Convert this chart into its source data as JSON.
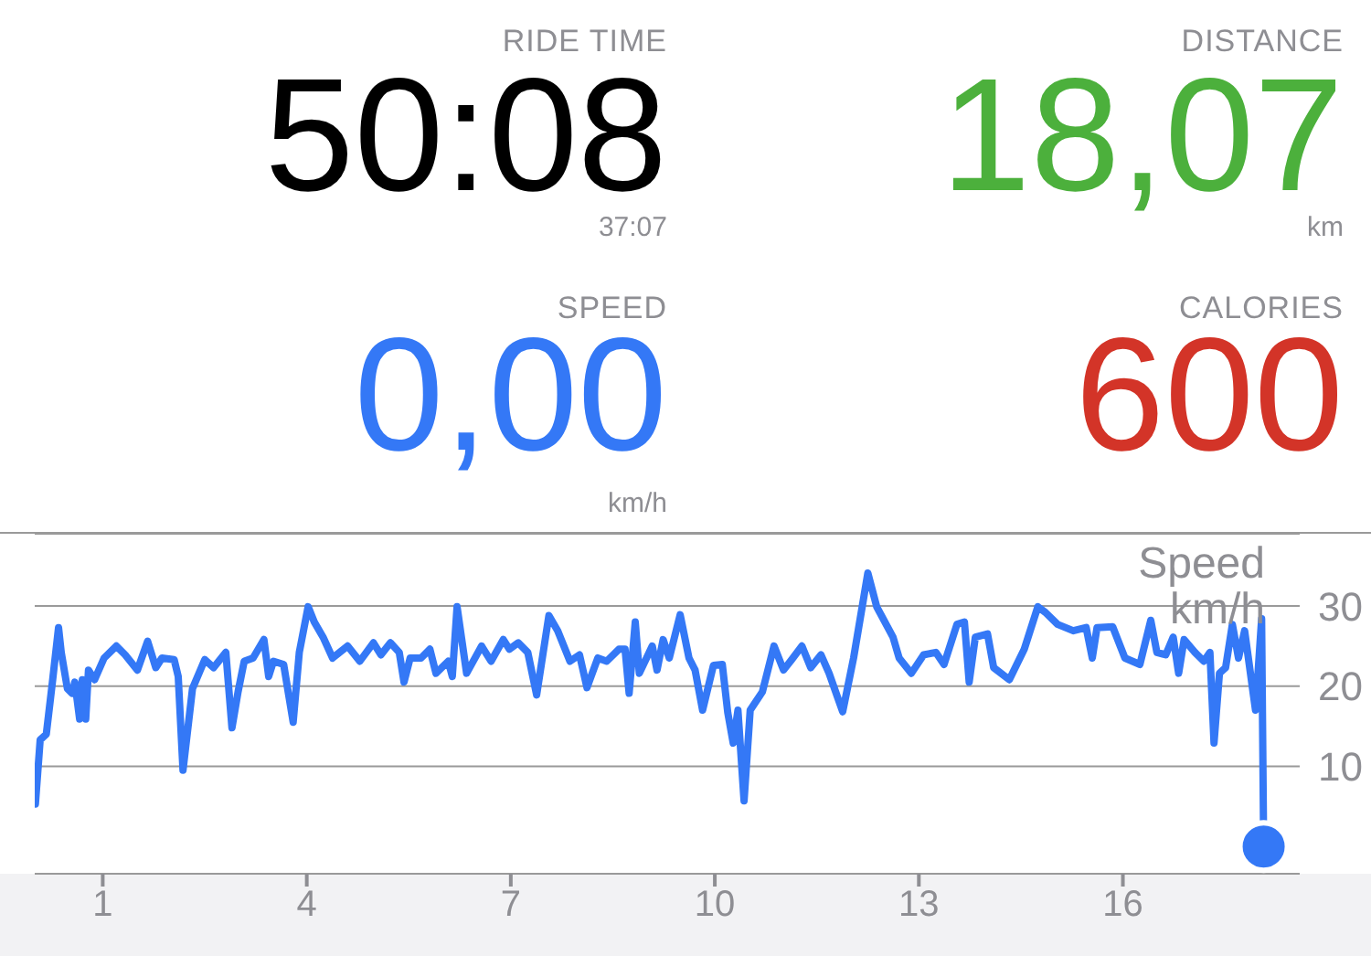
{
  "chart_data": [
    {
      "type": "other",
      "title": "RIDE TIME",
      "annotations": [
        "50:08",
        "37:07"
      ],
      "color": "#000000"
    },
    {
      "type": "other",
      "title": "DISTANCE",
      "annotations": [
        "18,07",
        "km"
      ],
      "color": "#4cb03c"
    },
    {
      "type": "other",
      "title": "SPEED",
      "annotations": [
        "0,00",
        "km/h"
      ],
      "color": "#3478f6"
    },
    {
      "type": "other",
      "title": "CALORIES",
      "annotations": [
        "600"
      ],
      "color": "#d33428"
    },
    {
      "type": "line",
      "ylabel": "Speed km/h",
      "xlim": [
        0,
        18.6
      ],
      "xticks": [
        1,
        4,
        7,
        10,
        13,
        16
      ],
      "ylim": [
        -3.4,
        39
      ],
      "yticks": [
        10,
        20,
        30
      ],
      "grid": "y",
      "line_style": "solid",
      "marker": "none",
      "series": [
        {
          "color": "#3478f6",
          "x": [
            0,
            0.01,
            0.08,
            0.17,
            0.26,
            0.35,
            0.39,
            0.48,
            0.55,
            0.59,
            0.66,
            0.7,
            0.75,
            0.79,
            0.88,
            1.02,
            1.2,
            1.33,
            1.51,
            1.66,
            1.78,
            1.87,
            2.05,
            2.11,
            2.18,
            2.32,
            2.5,
            2.63,
            2.81,
            2.9,
            2.99,
            3.08,
            3.21,
            3.37,
            3.44,
            3.51,
            3.66,
            3.8,
            3.89,
            4.02,
            4.11,
            4.24,
            4.38,
            4.6,
            4.78,
            4.98,
            5.09,
            5.23,
            5.36,
            5.43,
            5.52,
            5.68,
            5.81,
            5.9,
            6.08,
            6.14,
            6.21,
            6.35,
            6.57,
            6.71,
            6.89,
            6.98,
            7.11,
            7.25,
            7.38,
            7.56,
            7.69,
            7.87,
            8.01,
            8.12,
            8.28,
            8.41,
            8.59,
            8.68,
            8.74,
            8.83,
            8.89,
            9.08,
            9.15,
            9.24,
            9.33,
            9.49,
            9.62,
            9.71,
            9.82,
            9.98,
            10.11,
            10.19,
            10.27,
            10.34,
            10.43,
            10.52,
            10.7,
            10.87,
            11.01,
            11.13,
            11.28,
            11.41,
            11.56,
            11.68,
            11.88,
            12.04,
            12.25,
            12.38,
            12.62,
            12.71,
            12.89,
            13.07,
            13.25,
            13.37,
            13.56,
            13.67,
            13.74,
            13.83,
            14.01,
            14.1,
            14.33,
            14.55,
            14.75,
            14.86,
            15.04,
            15.27,
            15.46,
            15.55,
            15.62,
            15.85,
            16.03,
            16.25,
            16.41,
            16.5,
            16.63,
            16.74,
            16.82,
            16.9,
            17.06,
            17.19,
            17.28,
            17.34,
            17.42,
            17.51,
            17.61,
            17.7,
            17.79,
            17.95,
            18.04,
            18.07
          ],
          "values": [
            7.2,
            5.3,
            13.3,
            14,
            20.5,
            27.3,
            24.2,
            19.7,
            19.1,
            20.5,
            15.9,
            20.8,
            15.9,
            22,
            20.8,
            23.5,
            25,
            23.9,
            22,
            25.6,
            22.3,
            23.5,
            23.3,
            21.2,
            9.5,
            19.7,
            23.3,
            22.3,
            24.2,
            14.8,
            19.3,
            23.1,
            23.5,
            25.8,
            21.2,
            23.1,
            22.7,
            15.5,
            24.2,
            29.9,
            28,
            26.1,
            23.5,
            25,
            23.1,
            25.4,
            23.9,
            25.4,
            24.2,
            20.5,
            23.5,
            23.5,
            24.6,
            21.6,
            23.1,
            21.2,
            29.9,
            21.6,
            25,
            23.1,
            25.8,
            24.6,
            25.4,
            24.2,
            18.9,
            28.8,
            26.9,
            23.1,
            23.9,
            19.8,
            23.5,
            23.1,
            24.6,
            24.6,
            19.1,
            28,
            21.6,
            25,
            22,
            25.8,
            23.5,
            28.9,
            23.5,
            22,
            17,
            22.6,
            22.7,
            16.7,
            12.9,
            17,
            5.7,
            17,
            19.3,
            25,
            22,
            23.3,
            25,
            22.3,
            23.9,
            21.6,
            16.8,
            23.5,
            34.1,
            29.9,
            26.1,
            23.5,
            21.6,
            23.9,
            24.2,
            22.7,
            27.7,
            28,
            20.5,
            26.1,
            26.5,
            22.3,
            20.8,
            24.6,
            29.9,
            29.2,
            27.7,
            26.9,
            27.3,
            23.5,
            27.3,
            27.4,
            23.5,
            22.7,
            28.2,
            24.2,
            23.9,
            26.1,
            21.6,
            25.8,
            24.2,
            23.1,
            24.2,
            12.9,
            21.6,
            22.3,
            27.7,
            23.5,
            26.9,
            17,
            28.4,
            0
          ]
        },
        {
          "type": "scatter",
          "marker": "circle",
          "color": "#3478f6",
          "x": [
            18.07
          ],
          "values": [
            0
          ]
        }
      ]
    }
  ]
}
